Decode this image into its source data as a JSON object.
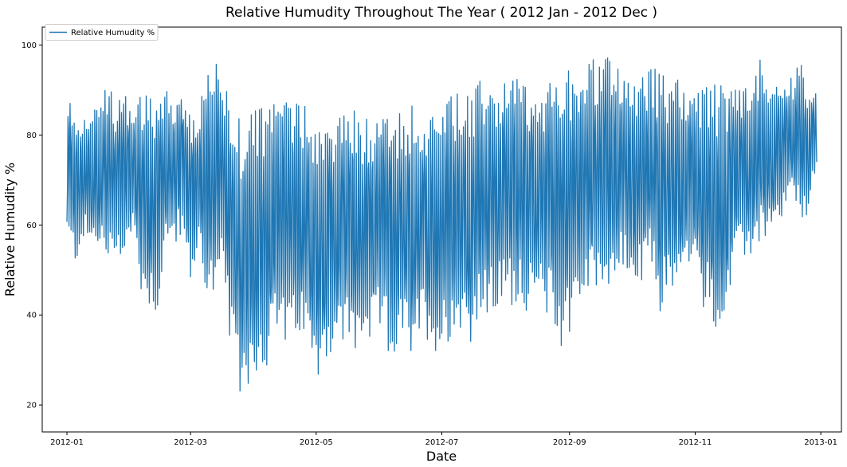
{
  "chart_data": {
    "type": "line",
    "title": "Relative Humudity Throughout The Year ( 2012 Jan - 2012 Dec )",
    "xlabel": "Date",
    "ylabel": "Relative Humudity %",
    "xlim": [
      "2011-12-20",
      "2013-01-11"
    ],
    "ylim": [
      14,
      104
    ],
    "x_ticks": [
      "2012-01",
      "2012-03",
      "2012-05",
      "2012-07",
      "2012-09",
      "2012-11",
      "2013-01"
    ],
    "y_ticks": [
      20,
      40,
      60,
      80,
      100
    ],
    "legend": {
      "entries": [
        "Relative Humudity %"
      ],
      "placement": "top-left"
    },
    "grid": false,
    "series": [
      {
        "name": "Relative Humudity %",
        "color": "#1f77b4",
        "sampling": "daily minimum and maximum, estimated",
        "x": [
          "2012-01-01",
          "2012-01-05",
          "2012-01-09",
          "2012-01-13",
          "2012-01-17",
          "2012-01-21",
          "2012-01-25",
          "2012-01-29",
          "2012-02-02",
          "2012-02-06",
          "2012-02-10",
          "2012-02-14",
          "2012-02-18",
          "2012-02-22",
          "2012-02-26",
          "2012-03-01",
          "2012-03-05",
          "2012-03-09",
          "2012-03-13",
          "2012-03-17",
          "2012-03-21",
          "2012-03-25",
          "2012-03-29",
          "2012-04-02",
          "2012-04-06",
          "2012-04-10",
          "2012-04-14",
          "2012-04-18",
          "2012-04-22",
          "2012-04-26",
          "2012-04-30",
          "2012-05-04",
          "2012-05-08",
          "2012-05-12",
          "2012-05-16",
          "2012-05-20",
          "2012-05-24",
          "2012-05-28",
          "2012-06-01",
          "2012-06-05",
          "2012-06-09",
          "2012-06-13",
          "2012-06-17",
          "2012-06-21",
          "2012-06-25",
          "2012-06-29",
          "2012-07-03",
          "2012-07-07",
          "2012-07-11",
          "2012-07-15",
          "2012-07-19",
          "2012-07-23",
          "2012-07-27",
          "2012-07-31",
          "2012-08-04",
          "2012-08-08",
          "2012-08-12",
          "2012-08-16",
          "2012-08-20",
          "2012-08-24",
          "2012-08-28",
          "2012-09-01",
          "2012-09-05",
          "2012-09-09",
          "2012-09-13",
          "2012-09-17",
          "2012-09-21",
          "2012-09-25",
          "2012-09-29",
          "2012-10-03",
          "2012-10-07",
          "2012-10-11",
          "2012-10-15",
          "2012-10-19",
          "2012-10-23",
          "2012-10-27",
          "2012-10-31",
          "2012-11-04",
          "2012-11-08",
          "2012-11-12",
          "2012-11-16",
          "2012-11-20",
          "2012-11-24",
          "2012-11-28",
          "2012-12-02",
          "2012-12-06",
          "2012-12-10",
          "2012-12-14",
          "2012-12-18",
          "2012-12-22",
          "2012-12-26",
          "2012-12-30"
        ],
        "min": [
          54,
          49,
          55,
          52,
          53,
          47,
          52,
          50,
          57,
          42,
          39,
          37,
          52,
          54,
          55,
          44,
          53,
          41,
          38,
          47,
          26,
          18,
          21,
          23,
          24,
          30,
          33,
          26,
          32,
          31,
          21,
          26,
          28,
          29,
          31,
          27,
          32,
          30,
          33,
          27,
          28,
          31,
          24,
          34,
          31,
          28,
          30,
          33,
          34,
          31,
          35,
          36,
          37,
          40,
          39,
          41,
          37,
          39,
          38,
          35,
          29,
          33,
          39,
          40,
          42,
          44,
          43,
          45,
          46,
          41,
          44,
          48,
          37,
          43,
          41,
          47,
          49,
          38,
          41,
          29,
          35,
          47,
          50,
          51,
          53,
          55,
          54,
          61,
          63,
          59,
          60,
          70
        ],
        "max": [
          91,
          89,
          87,
          90,
          91,
          93,
          90,
          91,
          88,
          94,
          92,
          92,
          93,
          91,
          92,
          86,
          88,
          99,
          100,
          94,
          91,
          87,
          90,
          90,
          89,
          90,
          94,
          95,
          91,
          92,
          90,
          88,
          87,
          89,
          88,
          91,
          86,
          87,
          91,
          93,
          89,
          89,
          91,
          90,
          87,
          90,
          91,
          92,
          93,
          91,
          96,
          95,
          94,
          97,
          96,
          98,
          95,
          97,
          94,
          96,
          97,
          98,
          99,
          100,
          100,
          100,
          100,
          100,
          99,
          98,
          97,
          98,
          97,
          95,
          96,
          94,
          95,
          93,
          94,
          95,
          93,
          94,
          95,
          92,
          100,
          98,
          97,
          95,
          96,
          98,
          94,
          93
        ]
      }
    ]
  }
}
